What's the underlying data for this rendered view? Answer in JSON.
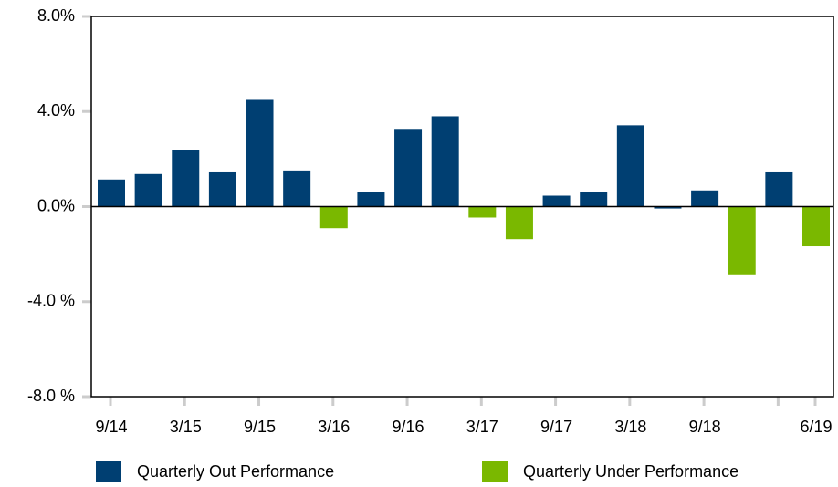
{
  "chart_data": {
    "type": "bar",
    "categories": [
      "9/14",
      null,
      "3/15",
      null,
      "9/15",
      null,
      "3/16",
      null,
      "9/16",
      null,
      "3/17",
      null,
      "9/17",
      null,
      "3/18",
      null,
      "9/18",
      null,
      null,
      "6/19"
    ],
    "series": [
      {
        "name": "Quarterly Out Performance",
        "color": "#003f72",
        "values": [
          1.14,
          1.37,
          2.36,
          1.44,
          4.49,
          1.52,
          null,
          0.61,
          3.27,
          3.8,
          null,
          null,
          0.46,
          0.61,
          3.42,
          -0.08,
          0.68,
          null,
          1.44,
          null
        ]
      },
      {
        "name": "Quarterly Under Performance",
        "color": "#7ab800",
        "values": [
          null,
          null,
          null,
          null,
          null,
          null,
          -0.91,
          null,
          null,
          null,
          -0.46,
          -1.37,
          null,
          null,
          null,
          null,
          null,
          -2.85,
          null,
          -1.67
        ]
      }
    ],
    "ylim": [
      -8,
      8
    ],
    "yticks": [
      {
        "value": 8,
        "label": "8.0%"
      },
      {
        "value": 4,
        "label": "4.0%"
      },
      {
        "value": 0,
        "label": "0.0%"
      },
      {
        "value": -4,
        "label": "-4.0 %"
      },
      {
        "value": -8,
        "label": "-8.0 %"
      }
    ],
    "xtick_positions": [
      0,
      2,
      4,
      6,
      8,
      10,
      12,
      14,
      16,
      18,
      19
    ],
    "legend": "bottom"
  }
}
